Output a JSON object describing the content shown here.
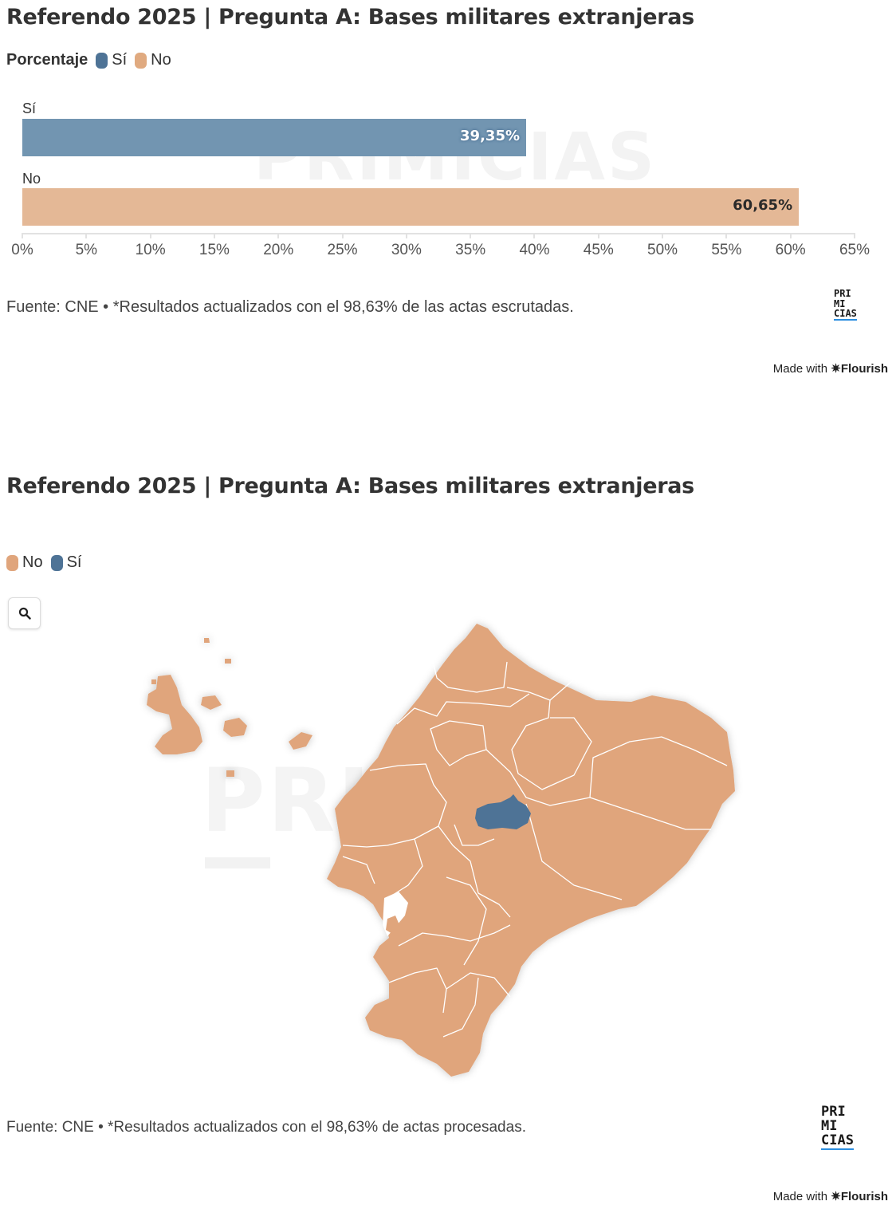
{
  "chart_data": [
    {
      "type": "bar",
      "orientation": "horizontal",
      "title": "Referendo 2025 | Pregunta A: Bases militares extranjeras",
      "legend_title": "Porcentaje",
      "categories": [
        "Sí",
        "No"
      ],
      "values": [
        39.35,
        60.65
      ],
      "value_labels": [
        "39,35%",
        "60,65%"
      ],
      "colors": [
        "#4e7396",
        "#e0aa80"
      ],
      "xlim": [
        0,
        65
      ],
      "x_ticks": [
        "0%",
        "5%",
        "10%",
        "15%",
        "20%",
        "25%",
        "30%",
        "35%",
        "40%",
        "45%",
        "50%",
        "55%",
        "60%",
        "65%"
      ],
      "grid": false,
      "legend_placement": "top-left",
      "source": "Fuente: CNE • *Resultados actualizados con el 98,63% de las actas escrutadas."
    },
    {
      "type": "map",
      "title": "Referendo 2025 | Pregunta A: Bases militares extranjeras",
      "region": "Ecuador",
      "legend": [
        {
          "label": "No",
          "color": "#e0a57c"
        },
        {
          "label": "Sí",
          "color": "#4e7396"
        }
      ],
      "provinces_winner": {
        "No": 23,
        "Sí": 1
      },
      "legend_placement": "top-left",
      "source": "Fuente: CNE • *Resultados actualizados con el 98,63% de actas procesadas."
    }
  ],
  "watermark": "PRIMICIAS",
  "watermark2": "PRI",
  "logo_lines": [
    "PRI",
    "MI",
    "CIAS"
  ],
  "made_with": {
    "prefix": "Made with",
    "brand": "Flourish",
    "star": "✷"
  },
  "icons": {
    "zoom": "search-icon"
  }
}
